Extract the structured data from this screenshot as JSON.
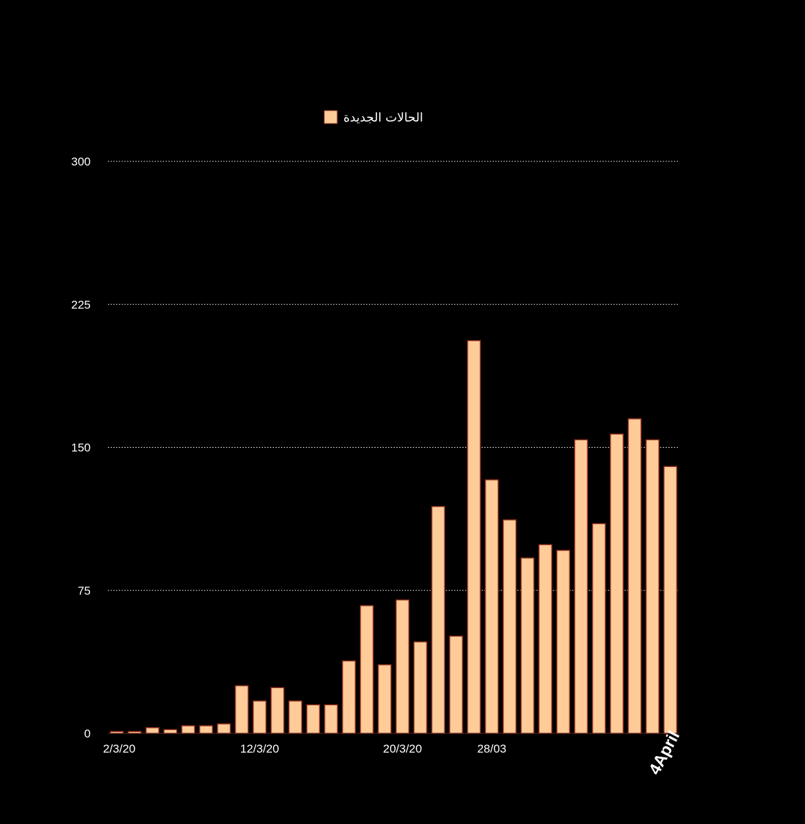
{
  "chart_data": {
    "type": "bar",
    "title": "",
    "xlabel": "",
    "ylabel": "",
    "ylim": [
      0,
      300
    ],
    "yticks": [
      0,
      75,
      150,
      225,
      300
    ],
    "grid": true,
    "legend": {
      "position": "top-center",
      "entries": [
        "الحالات الجديدة"
      ]
    },
    "series": [
      {
        "name": "الحالات الجديدة",
        "color": "#ffcc99",
        "values": [
          1,
          1,
          3,
          2,
          4,
          4,
          5,
          25,
          17,
          24,
          17,
          15,
          15,
          38,
          67,
          36,
          70,
          48,
          119,
          51,
          206,
          133,
          112,
          92,
          99,
          96,
          154,
          110,
          157,
          165,
          154,
          140
        ]
      }
    ],
    "x_tick_labels": [
      {
        "index": 0,
        "label": "2/3/20"
      },
      {
        "index": 8,
        "label": "12/3/20"
      },
      {
        "index": 16,
        "label": "20/3/20"
      },
      {
        "index": 21,
        "label": "28/03"
      },
      {
        "index": 31,
        "label": "4April"
      }
    ]
  },
  "colors": {
    "background": "#000000",
    "bar_fill": "#ffcc99",
    "bar_stroke": "#8a2a1a",
    "grid": "#cccccc",
    "text": "#ffffff"
  }
}
